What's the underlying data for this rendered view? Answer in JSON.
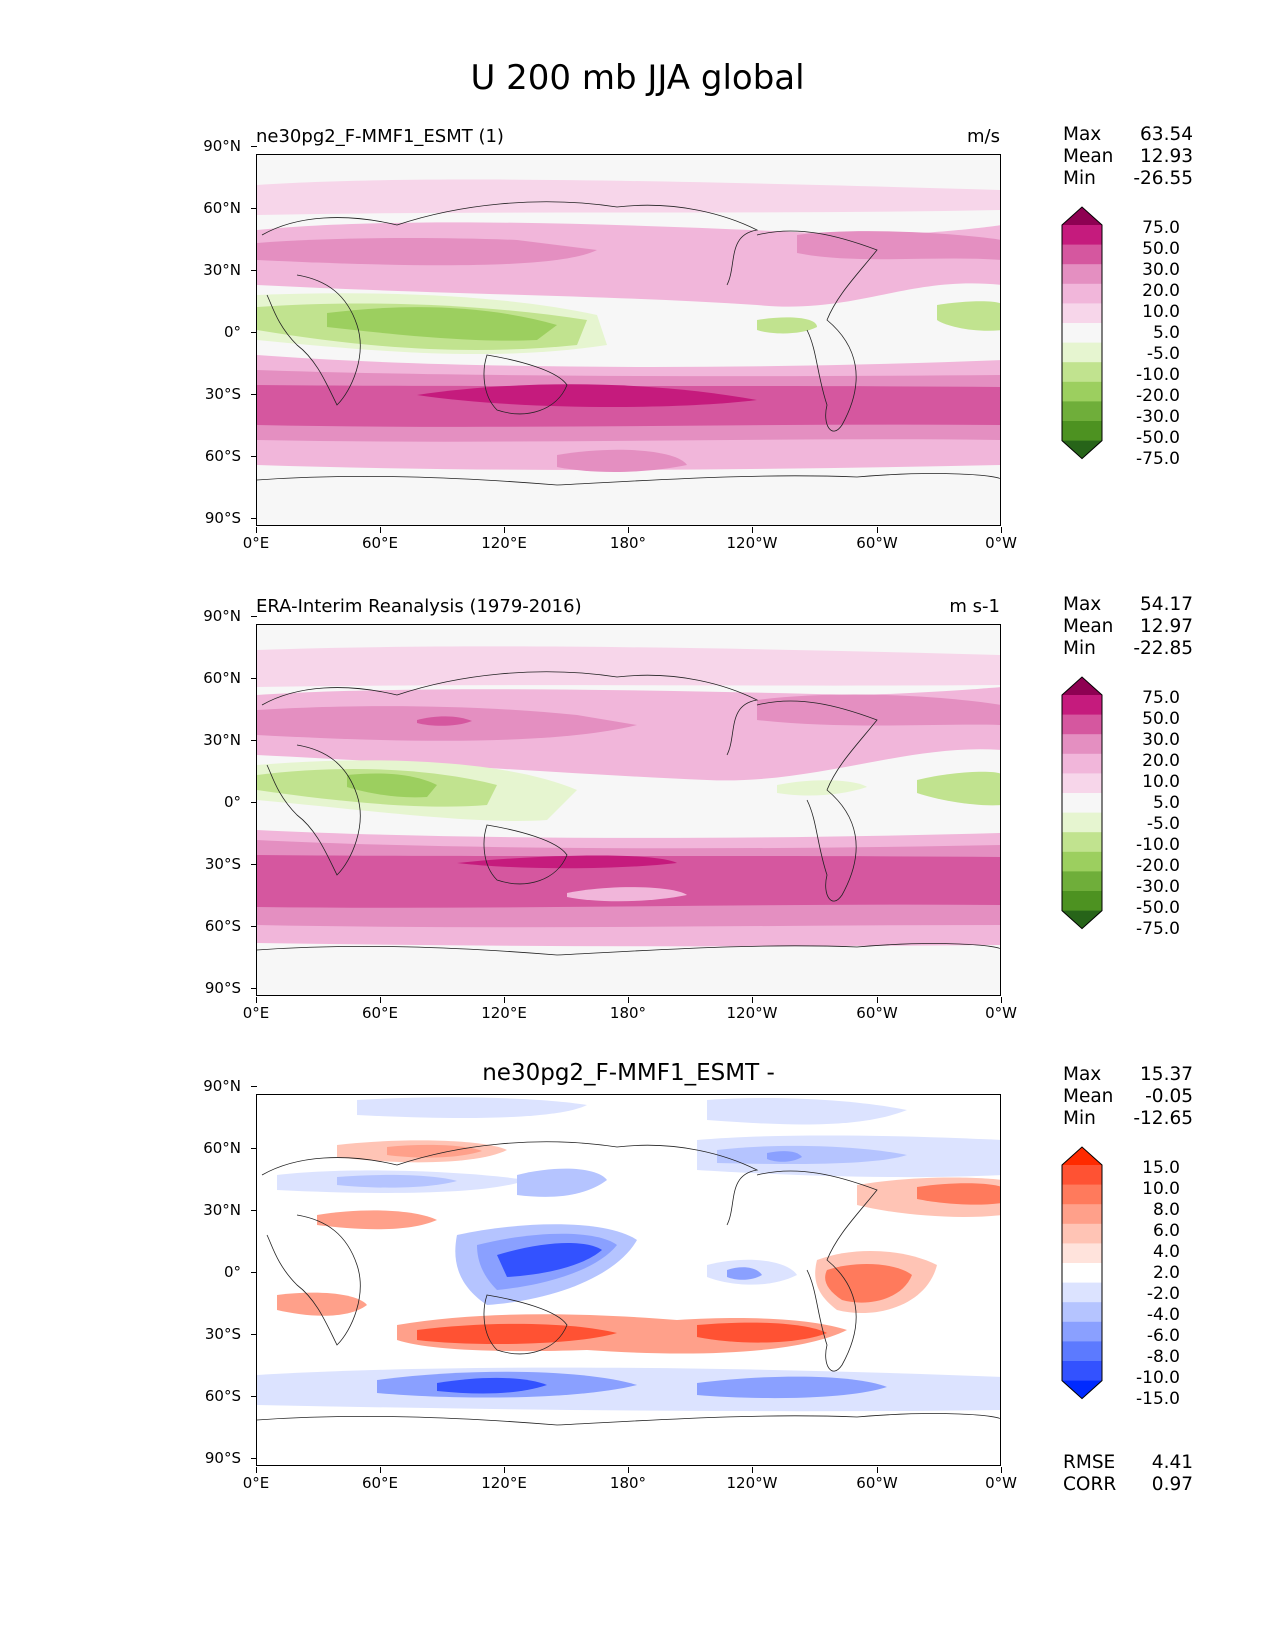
{
  "title": "U 200 mb JJA global",
  "lat_ticks": [
    "90°N",
    "60°N",
    "30°N",
    "0°",
    "30°S",
    "60°S",
    "90°S"
  ],
  "lon_ticks": [
    "0°E",
    "60°E",
    "120°E",
    "180°",
    "120°W",
    "60°W",
    "0°W"
  ],
  "panels": [
    {
      "left_title": "ne30pg2_F-MMF1_ESMT (1)",
      "right_title": "m/s",
      "center_title": "",
      "stats": [
        {
          "label": "Max",
          "value": "63.54"
        },
        {
          "label": "Mean",
          "value": "12.93"
        },
        {
          "label": "Min",
          "value": "-26.55"
        }
      ],
      "extra_stats": [],
      "colorbar": {
        "labels": [
          "75.0",
          "50.0",
          "30.0",
          "20.0",
          "10.0",
          "5.0",
          "-5.0",
          "-10.0",
          "-20.0",
          "-30.0",
          "-50.0",
          "-75.0"
        ],
        "colors": [
          "#8e0152",
          "#c51b7d",
          "#d5579f",
          "#e48fc1",
          "#f1b6da",
          "#f7d6ea",
          "#f7f7f7",
          "#e6f5d0",
          "#c1e38f",
          "#9ccf5f",
          "#6fae3a",
          "#4d9221",
          "#276419"
        ]
      }
    },
    {
      "left_title": "ERA-Interim Reanalysis (1979-2016)",
      "right_title": "m s-1",
      "center_title": "",
      "stats": [
        {
          "label": "Max",
          "value": "54.17"
        },
        {
          "label": "Mean",
          "value": "12.97"
        },
        {
          "label": "Min",
          "value": "-22.85"
        }
      ],
      "extra_stats": [],
      "colorbar": {
        "labels": [
          "75.0",
          "50.0",
          "30.0",
          "20.0",
          "10.0",
          "5.0",
          "-5.0",
          "-10.0",
          "-20.0",
          "-30.0",
          "-50.0",
          "-75.0"
        ],
        "colors": [
          "#8e0152",
          "#c51b7d",
          "#d5579f",
          "#e48fc1",
          "#f1b6da",
          "#f7d6ea",
          "#f7f7f7",
          "#e6f5d0",
          "#c1e38f",
          "#9ccf5f",
          "#6fae3a",
          "#4d9221",
          "#276419"
        ]
      }
    },
    {
      "left_title": "",
      "right_title": "",
      "center_title": "ne30pg2_F-MMF1_ESMT -",
      "stats": [
        {
          "label": "Max",
          "value": "15.37"
        },
        {
          "label": "Mean",
          "value": "-0.05"
        },
        {
          "label": "Min",
          "value": "-12.65"
        }
      ],
      "extra_stats": [
        {
          "label": "RMSE",
          "value": "4.41"
        },
        {
          "label": "CORR",
          "value": "0.97"
        }
      ],
      "colorbar": {
        "labels": [
          "15.0",
          "10.0",
          "8.0",
          "6.0",
          "4.0",
          "2.0",
          "-2.0",
          "-4.0",
          "-6.0",
          "-8.0",
          "-10.0",
          "-15.0"
        ],
        "colors": [
          "#ff2a00",
          "#ff5233",
          "#ff7a5c",
          "#ffa08a",
          "#ffc4b5",
          "#ffe3dc",
          "#ffffff",
          "#dce3ff",
          "#b5c4ff",
          "#8aa0ff",
          "#5c7aff",
          "#3352ff",
          "#002aff"
        ]
      }
    }
  ]
}
